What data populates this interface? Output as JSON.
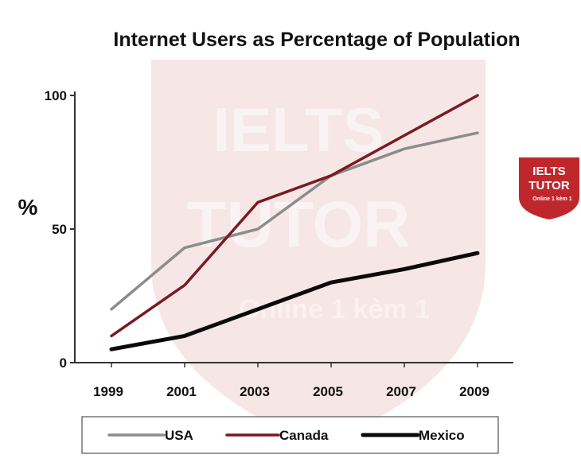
{
  "chart_data": {
    "type": "line",
    "title": "Internet Users as Percentage of Population",
    "ylabel": "%",
    "xlabel": "",
    "x": [
      1999,
      2001,
      2003,
      2005,
      2007,
      2009
    ],
    "x_ticks": [
      "1999",
      "2001",
      "2003",
      "2005",
      "2007",
      "2009"
    ],
    "y_ticks": [
      0,
      50,
      100
    ],
    "ylim": [
      0,
      100
    ],
    "grid": false,
    "legend_position": "bottom",
    "series": [
      {
        "name": "USA",
        "color": "#8c8c8c",
        "values": [
          20,
          43,
          50,
          70,
          80,
          86
        ]
      },
      {
        "name": "Canada",
        "color": "#7a1a22",
        "values": [
          10,
          29,
          60,
          70,
          85,
          100
        ]
      },
      {
        "name": "Mexico",
        "color": "#0a0a0a",
        "values": [
          5,
          10,
          20,
          30,
          35,
          41
        ]
      }
    ]
  },
  "watermark": {
    "line1": "IELTS",
    "line2": "TUTOR",
    "line3": "Online 1 kèm 1",
    "badge_line1": "IELTS",
    "badge_line2": "TUTOR",
    "badge_line3": "Online 1 kèm 1",
    "shield_color": "#f6e6e5",
    "badge_color": "#c0272d"
  }
}
